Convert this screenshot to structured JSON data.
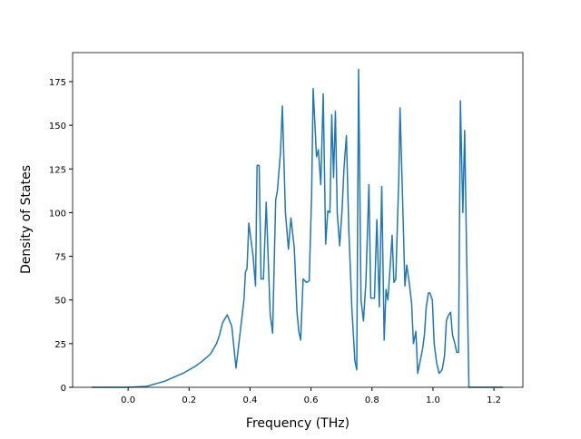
{
  "chart_data": {
    "type": "line",
    "xlabel": "Frequency (THz)",
    "ylabel": "Density of States",
    "xlim": [
      -0.182,
      1.295
    ],
    "ylim": [
      0,
      191.6
    ],
    "xticks": [
      {
        "value": 0,
        "label": "0.0"
      },
      0.2,
      0.4,
      0.6,
      0.8,
      {
        "value": 1,
        "label": "1.0"
      },
      1.2
    ],
    "yticks": [
      0,
      25,
      50,
      75,
      100,
      125,
      150,
      175
    ],
    "series": [
      {
        "color": "#1f77b4",
        "x": [
          -0.12,
          0.0,
          0.06,
          0.08,
          0.1,
          0.12,
          0.14,
          0.16,
          0.18,
          0.2,
          0.22,
          0.24,
          0.25,
          0.27,
          0.28,
          0.29,
          0.3,
          0.31,
          0.325,
          0.34,
          0.354,
          0.37,
          0.38,
          0.385,
          0.39,
          0.396,
          0.41,
          0.418,
          0.423,
          0.43,
          0.436,
          0.444,
          0.453,
          0.466,
          0.474,
          0.484,
          0.49,
          0.5,
          0.506,
          0.516,
          0.526,
          0.534,
          0.545,
          0.554,
          0.56,
          0.566,
          0.574,
          0.58,
          0.585,
          0.594,
          0.602,
          0.607,
          0.618,
          0.624,
          0.632,
          0.64,
          0.648,
          0.655,
          0.662,
          0.668,
          0.674,
          0.68,
          0.686,
          0.694,
          0.702,
          0.708,
          0.716,
          0.724,
          0.734,
          0.744,
          0.75,
          0.756,
          0.764,
          0.772,
          0.78,
          0.79,
          0.796,
          0.808,
          0.816,
          0.824,
          0.832,
          0.84,
          0.846,
          0.852,
          0.86,
          0.866,
          0.872,
          0.878,
          0.888,
          0.892,
          0.9,
          0.908,
          0.914,
          0.922,
          0.93,
          0.936,
          0.944,
          0.95,
          0.958,
          0.966,
          0.972,
          0.978,
          0.985,
          0.99,
          0.998,
          1.004,
          1.012,
          1.02,
          1.03,
          1.038,
          1.044,
          1.05,
          1.058,
          1.064,
          1.072,
          1.078,
          1.084,
          1.09,
          1.098,
          1.104,
          1.11,
          1.118,
          1.23
        ],
        "values": [
          0,
          0,
          0.5,
          1.5,
          2.5,
          3.5,
          5,
          6.5,
          8,
          10,
          12,
          14.5,
          16,
          19,
          22,
          25,
          30,
          37,
          41.5,
          35,
          11,
          35,
          50,
          66,
          68,
          94,
          75,
          58,
          127,
          127,
          62,
          62,
          106,
          42,
          31,
          107,
          113,
          135,
          161,
          100,
          79,
          97,
          80,
          43,
          32,
          27,
          62,
          61,
          60,
          61,
          110,
          171,
          132,
          136,
          116,
          168,
          82,
          101,
          100,
          156,
          120,
          158,
          100,
          81,
          102,
          125,
          144,
          90,
          45,
          15,
          10,
          182,
          50,
          38,
          60,
          116,
          51,
          51,
          96,
          46,
          115,
          27,
          56,
          50,
          70,
          87,
          60,
          62,
          120,
          160,
          110,
          58,
          70,
          60,
          48,
          25,
          32,
          8,
          15,
          22,
          30,
          46,
          54,
          54,
          50,
          25,
          14,
          8,
          10,
          18,
          38,
          41,
          43,
          30,
          25,
          20,
          20,
          164,
          100,
          147,
          80,
          0,
          0
        ]
      }
    ]
  }
}
